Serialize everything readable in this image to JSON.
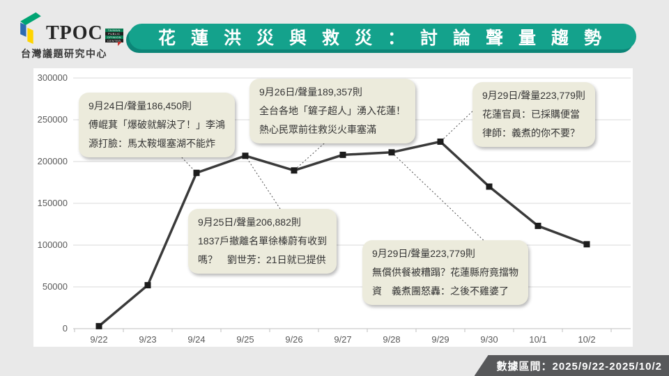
{
  "logo": {
    "brand": "TPOC",
    "badge_lines": [
      "TAIWAN",
      "PUBLIC",
      "OPINION",
      "CENTER"
    ],
    "subtitle": "台灣議題研究中心"
  },
  "header": {
    "title": "花蓮洪災與救災：討論聲量趨勢"
  },
  "footer": {
    "data_range_label": "數據區間：2025/9/22-2025/10/2"
  },
  "colors": {
    "page_bg": "#e9e9e9",
    "panel_bg": "#ffffff",
    "banner_teal": "#14a28c",
    "banner_shadow": "#0c8577",
    "callout_bg": "#ecebdc",
    "footer_bg": "#57585a",
    "gridline": "#d9d9d9",
    "axis_text": "#595959",
    "line_color": "#3a3a3a",
    "logo_green": "#00a473",
    "logo_blue": "#2e6bb1",
    "logo_yellow": "#ffd400",
    "logo_red": "#c9342f"
  },
  "chart_data": {
    "type": "line",
    "title": "花蓮洪災與救災：討論聲量趨勢",
    "categories": [
      "9/22",
      "9/23",
      "9/24",
      "9/25",
      "9/26",
      "9/27",
      "9/28",
      "9/29",
      "9/30",
      "10/1",
      "10/2"
    ],
    "values": [
      3000,
      52000,
      186450,
      206882,
      189357,
      208000,
      211000,
      223779,
      170000,
      123000,
      101000
    ],
    "xlabel": "",
    "ylabel": "",
    "ylim": [
      0,
      300000
    ],
    "ytick_step": 50000,
    "grid": true,
    "legend": "none",
    "line_color": "#3a3a3a",
    "marker": "square",
    "annotations": [
      {
        "lines": [
          "9月24日/聲量186,450則",
          "傅崐萁「爆破就解決了！」李鴻",
          "源打臉：馬太鞍堰塞湖不能炸"
        ]
      },
      {
        "lines": [
          "9月26日/聲量189,357則",
          "全台各地「鏟子超人」湧入花蓮！",
          "熱心民眾前往救災火車塞滿"
        ]
      },
      {
        "lines": [
          "9月29日/聲量223,779則",
          "花蓮官員：已採購便當",
          "律師：義煮的你不要？"
        ]
      },
      {
        "lines": [
          "9月25日/聲量206,882則",
          "1837戶撤離名單徐榛蔚有收到",
          "嗎？　劉世芳：21日就已提供"
        ]
      },
      {
        "lines": [
          "9月29日/聲量223,779則",
          "無償供餐被糟蹋？花蓮縣府竟擋物",
          "資　義煮團怒轟：之後不雞婆了"
        ]
      }
    ]
  }
}
